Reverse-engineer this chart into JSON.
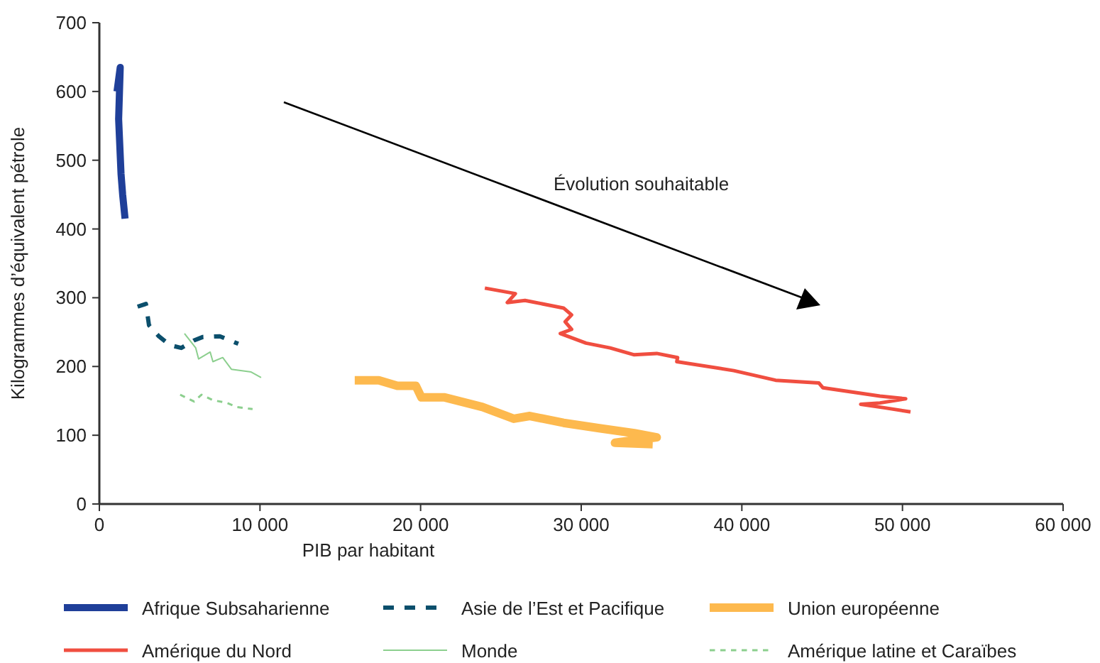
{
  "chart_data": {
    "type": "line",
    "xlabel": "PIB par habitant",
    "ylabel": "Kilogrammes d’équivalent pétrole",
    "xlim": [
      0,
      60000
    ],
    "xticks": [
      0,
      {
        "value": 10000,
        "label": "10 000"
      },
      {
        "value": 20000,
        "label": "20 000"
      },
      {
        "value": 30000,
        "label": "30 000"
      },
      {
        "value": 40000,
        "label": "40 000"
      },
      {
        "value": 50000,
        "label": "50 000"
      },
      {
        "value": 60000,
        "label": "60 000"
      }
    ],
    "ylim": [
      0,
      700
    ],
    "yticks": [
      0,
      100,
      200,
      300,
      400,
      500,
      600,
      700
    ],
    "grid": false,
    "legend": "bottom",
    "annotations": [
      "Évolution souhaitable"
    ],
    "series": [
      {
        "name": "Afrique Subsaharienne",
        "color": "#1f3f99",
        "line_style": "solid",
        "x": [
          1100,
          1300,
          1200,
          1350,
          1450,
          1600
        ],
        "values": [
          600,
          635,
          560,
          480,
          450,
          415
        ]
      },
      {
        "name": "Asie de l’Est et Pacifique",
        "color": "#0b4f6c",
        "line_style": "dashed",
        "x": [
          2380,
          2900,
          3090,
          3700,
          4400,
          5100,
          5900,
          6450,
          7500,
          8650
        ],
        "values": [
          287,
          291,
          260,
          244,
          231,
          227,
          238,
          243,
          244,
          233
        ]
      },
      {
        "name": "Union européenne",
        "color": "#fdb94e",
        "line_style": "solid",
        "x": [
          15900,
          17400,
          18550,
          19700,
          20050,
          21500,
          23850,
          25800,
          26800,
          28900,
          31200,
          33300,
          34700,
          32100,
          34450
        ],
        "values": [
          180,
          180,
          172,
          172,
          155,
          155,
          141,
          124,
          128,
          118,
          110,
          103,
          97,
          89,
          87
        ]
      },
      {
        "name": "Amérique du Nord",
        "color": "#f04e40",
        "line_style": "solid",
        "x": [
          24000,
          25900,
          25400,
          26500,
          28900,
          29400,
          29000,
          29400,
          28700,
          30300,
          31800,
          33300,
          34700,
          36000,
          35950,
          39500,
          42100,
          44800,
          45050,
          48600,
          50200,
          48600,
          47400,
          48850,
          50500
        ],
        "values": [
          314,
          306,
          293,
          296,
          285,
          275,
          265,
          254,
          248,
          234,
          227,
          217,
          219,
          213,
          207,
          194,
          180,
          176,
          169,
          157,
          153,
          147,
          145,
          140,
          134
        ]
      },
      {
        "name": "Monde",
        "color": "#8ccf8e",
        "line_style": "solid",
        "x": [
          5300,
          6000,
          6180,
          6900,
          7070,
          7680,
          8220,
          9450,
          10070
        ],
        "values": [
          248,
          227,
          211,
          221,
          207,
          213,
          196,
          192,
          184
        ]
      },
      {
        "name": "Amérique latine et Caraïbes",
        "color": "#8ccf8e",
        "line_style": "dashed",
        "x": [
          5030,
          5900,
          6360,
          7070,
          7950,
          8560,
          9540
        ],
        "values": [
          159,
          149,
          159,
          151,
          147,
          141,
          138
        ]
      }
    ]
  }
}
